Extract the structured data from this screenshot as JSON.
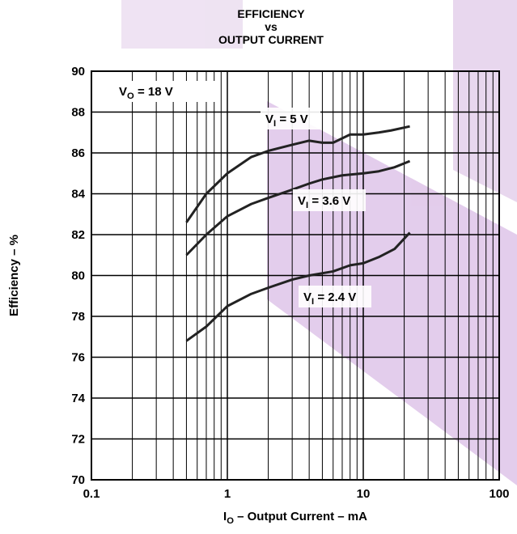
{
  "chart_data": {
    "type": "line",
    "title": [
      "EFFICIENCY",
      "vs",
      "OUTPUT CURRENT"
    ],
    "x_label": {
      "main": "I",
      "sub": "O",
      "rest": " – Output Current – mA"
    },
    "y_label": "Efficiency – %",
    "annotation": {
      "main": "V",
      "sub": "O",
      "rest": " = 18 V"
    },
    "x_scale": "log",
    "xlim": [
      0.1,
      100
    ],
    "xticks": [
      0.1,
      1,
      10,
      100
    ],
    "x_minor_ticks": [
      0.2,
      0.3,
      0.4,
      0.5,
      0.6,
      0.7,
      0.8,
      0.9,
      2,
      3,
      4,
      5,
      6,
      7,
      8,
      9,
      20,
      30,
      40,
      50,
      60,
      70,
      80,
      90
    ],
    "ylim": [
      70,
      90
    ],
    "yticks": [
      70,
      72,
      74,
      76,
      78,
      80,
      82,
      84,
      86,
      88,
      90
    ],
    "grid": true,
    "series": [
      {
        "name": {
          "main": "V",
          "sub": "I",
          "rest": " = 5 V"
        },
        "color": "#222222",
        "x": [
          0.5,
          0.7,
          1,
          1.5,
          2,
          3,
          4,
          5,
          6,
          8,
          10,
          13,
          16,
          22
        ],
        "values": [
          82.6,
          84.0,
          85.0,
          85.8,
          86.1,
          86.4,
          86.6,
          86.5,
          86.5,
          86.9,
          86.9,
          87.0,
          87.1,
          87.3
        ]
      },
      {
        "name": {
          "main": "V",
          "sub": "I",
          "rest": " = 3.6 V"
        },
        "color": "#222222",
        "x": [
          0.5,
          0.7,
          1,
          1.5,
          2,
          3,
          4,
          5,
          7,
          10,
          13,
          17,
          22
        ],
        "values": [
          81.0,
          82.0,
          82.9,
          83.5,
          83.8,
          84.2,
          84.5,
          84.7,
          84.9,
          85.0,
          85.1,
          85.3,
          85.6
        ]
      },
      {
        "name": {
          "main": "V",
          "sub": "I",
          "rest": " = 2.4 V"
        },
        "color": "#222222",
        "x": [
          0.5,
          0.7,
          1,
          1.5,
          2,
          3,
          4,
          6,
          8,
          10,
          13,
          17,
          22
        ],
        "values": [
          76.8,
          77.5,
          78.5,
          79.1,
          79.4,
          79.8,
          80.0,
          80.2,
          80.5,
          80.6,
          80.9,
          81.3,
          82.1
        ]
      }
    ]
  }
}
